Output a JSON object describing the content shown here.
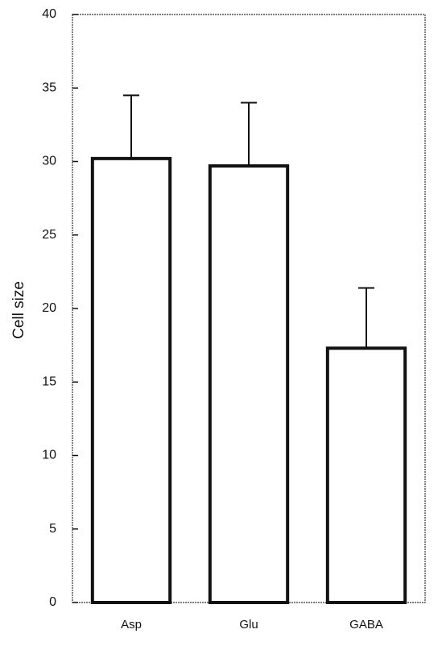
{
  "chart_data": {
    "type": "bar",
    "y_label": "Cell size",
    "categories": [
      "Asp",
      "Glu",
      "GABA"
    ],
    "values": [
      30.2,
      29.7,
      17.3
    ],
    "errors": [
      4.3,
      4.3,
      4.1
    ],
    "color": "#ffffff",
    "ylim": [
      0,
      40
    ],
    "yticks": [
      0,
      5,
      10,
      15,
      20,
      25,
      30,
      35,
      40
    ],
    "grid": false
  }
}
